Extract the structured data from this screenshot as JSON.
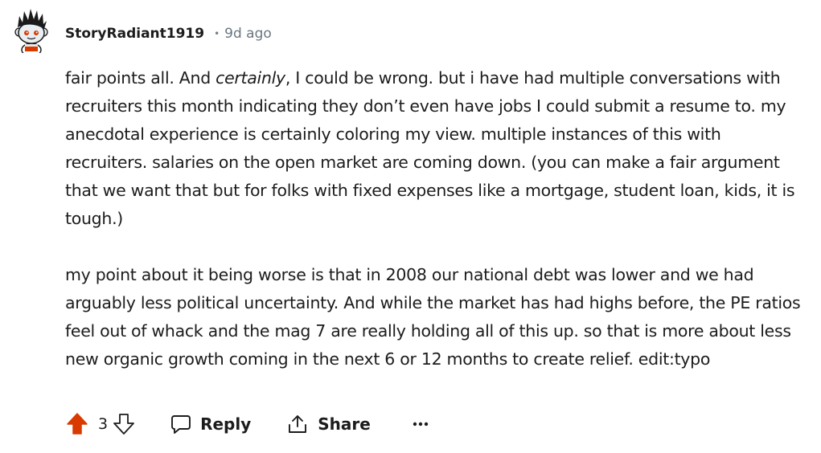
{
  "comment": {
    "username": "StoryRadiant1919",
    "separator": "•",
    "time_ago": "9d ago",
    "body": {
      "p1_before": "fair points all. And ",
      "p1_emph": "certainly",
      "p1_after": ", I could be wrong. but i have had multiple conversations with recruiters this month indicating they don’t even have jobs I could submit a resume to. my anecdotal experience is certainly coloring my view. multiple instances of this with recruiters. salaries on the open market are coming down. (you can make a fair argument that we want that but for folks with fixed expenses like a mortgage, student loan, kids, it is tough.)",
      "p2": "my point about it being worse is that in 2008 our national debt was lower and we had arguably less political uncertainty. And while the market has had highs before, the PE ratios feel out of whack and the mag 7 are really holding all of this up. so that is more about less new organic growth coming in the next 6 or 12 months to create relief. edit:typo"
    },
    "actions": {
      "score": "3",
      "upvote_icon": "arrow-up-icon",
      "upvote_active": true,
      "upvote_color": "#d93a00",
      "downvote_icon": "arrow-down-icon",
      "reply_icon": "speech-bubble-icon",
      "reply_label": "Reply",
      "share_icon": "share-icon",
      "share_label": "Share",
      "more_icon": "ellipsis-icon"
    }
  }
}
